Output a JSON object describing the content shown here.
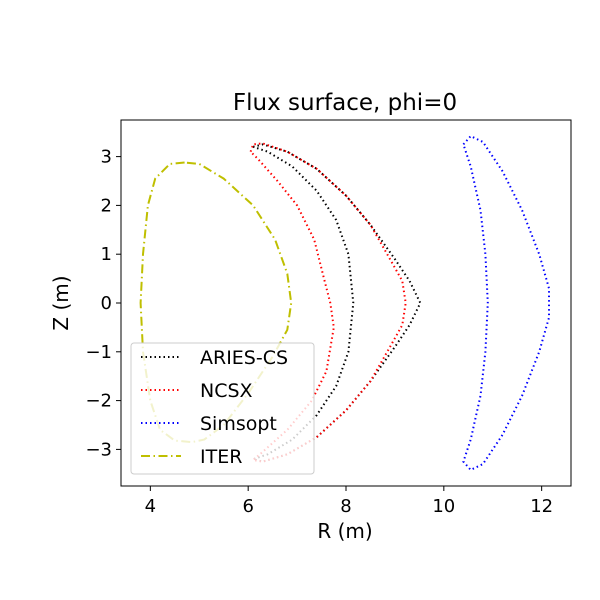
{
  "chart_data": {
    "type": "line",
    "title": "Flux surface, phi=0",
    "xlabel": "R (m)",
    "ylabel": "Z (m)",
    "xlim": [
      3.4,
      12.6
    ],
    "ylim": [
      -3.75,
      3.75
    ],
    "xticks": [
      4,
      6,
      8,
      10,
      12
    ],
    "yticks": [
      -3,
      -2,
      -1,
      0,
      1,
      2,
      3
    ],
    "grid": false,
    "legend_position": "lower-left",
    "series": [
      {
        "name": "ARIES-CS",
        "color": "#000000",
        "style": "dotted",
        "points": [
          [
            6.1,
            3.2
          ],
          [
            6.3,
            3.25
          ],
          [
            6.8,
            3.1
          ],
          [
            7.4,
            2.75
          ],
          [
            8.0,
            2.2
          ],
          [
            8.5,
            1.6
          ],
          [
            9.0,
            0.9
          ],
          [
            9.3,
            0.45
          ],
          [
            9.52,
            0.0
          ],
          [
            9.3,
            -0.45
          ],
          [
            9.0,
            -0.9
          ],
          [
            8.5,
            -1.6
          ],
          [
            8.0,
            -2.2
          ],
          [
            7.4,
            -2.75
          ],
          [
            6.8,
            -3.1
          ],
          [
            6.3,
            -3.25
          ],
          [
            6.1,
            -3.2
          ],
          [
            6.4,
            -3.1
          ],
          [
            6.9,
            -2.8
          ],
          [
            7.4,
            -2.3
          ],
          [
            7.8,
            -1.7
          ],
          [
            8.05,
            -1.0
          ],
          [
            8.15,
            0.0
          ],
          [
            8.05,
            1.0
          ],
          [
            7.8,
            1.7
          ],
          [
            7.4,
            2.3
          ],
          [
            6.9,
            2.8
          ],
          [
            6.4,
            3.1
          ],
          [
            6.1,
            3.2
          ]
        ]
      },
      {
        "name": "NCSX",
        "color": "#ff0000",
        "style": "dotted",
        "points": [
          [
            6.05,
            3.1
          ],
          [
            6.1,
            3.25
          ],
          [
            6.3,
            3.27
          ],
          [
            6.8,
            3.1
          ],
          [
            7.4,
            2.75
          ],
          [
            8.0,
            2.2
          ],
          [
            8.5,
            1.6
          ],
          [
            8.9,
            0.9
          ],
          [
            9.15,
            0.45
          ],
          [
            9.22,
            0.0
          ],
          [
            9.15,
            -0.45
          ],
          [
            8.9,
            -0.9
          ],
          [
            8.5,
            -1.6
          ],
          [
            8.0,
            -2.2
          ],
          [
            7.4,
            -2.75
          ],
          [
            6.8,
            -3.1
          ],
          [
            6.3,
            -3.25
          ],
          [
            6.1,
            -3.22
          ],
          [
            6.3,
            -3.05
          ],
          [
            6.8,
            -2.6
          ],
          [
            7.3,
            -2.0
          ],
          [
            7.6,
            -1.4
          ],
          [
            7.75,
            -0.5
          ],
          [
            7.68,
            0.0
          ],
          [
            7.55,
            0.5
          ],
          [
            7.35,
            1.3
          ],
          [
            7.0,
            2.0
          ],
          [
            6.6,
            2.5
          ],
          [
            6.2,
            2.95
          ],
          [
            6.05,
            3.1
          ]
        ]
      },
      {
        "name": "Simsopt",
        "color": "#0000ff",
        "style": "dotted",
        "points": [
          [
            10.4,
            3.25
          ],
          [
            10.55,
            3.42
          ],
          [
            10.8,
            3.3
          ],
          [
            11.2,
            2.7
          ],
          [
            11.6,
            1.9
          ],
          [
            11.95,
            1.0
          ],
          [
            12.15,
            0.3
          ],
          [
            12.15,
            -0.3
          ],
          [
            11.95,
            -1.0
          ],
          [
            11.6,
            -1.9
          ],
          [
            11.2,
            -2.7
          ],
          [
            10.8,
            -3.3
          ],
          [
            10.55,
            -3.42
          ],
          [
            10.4,
            -3.25
          ],
          [
            10.55,
            -2.8
          ],
          [
            10.75,
            -1.9
          ],
          [
            10.85,
            -1.0
          ],
          [
            10.9,
            0.0
          ],
          [
            10.85,
            1.0
          ],
          [
            10.75,
            1.9
          ],
          [
            10.55,
            2.8
          ],
          [
            10.4,
            3.25
          ]
        ]
      },
      {
        "name": "ITER",
        "color": "#bfbf00",
        "style": "dashdot",
        "points": [
          [
            4.7,
            2.88
          ],
          [
            4.4,
            2.85
          ],
          [
            4.1,
            2.55
          ],
          [
            3.95,
            2.0
          ],
          [
            3.85,
            1.0
          ],
          [
            3.8,
            0.0
          ],
          [
            3.85,
            -1.0
          ],
          [
            4.0,
            -2.0
          ],
          [
            4.2,
            -2.6
          ],
          [
            4.5,
            -2.82
          ],
          [
            4.85,
            -2.85
          ],
          [
            5.1,
            -2.8
          ],
          [
            5.5,
            -2.5
          ],
          [
            6.0,
            -1.85
          ],
          [
            6.5,
            -1.1
          ],
          [
            6.8,
            -0.55
          ],
          [
            6.88,
            0.0
          ],
          [
            6.8,
            0.6
          ],
          [
            6.55,
            1.3
          ],
          [
            6.1,
            2.0
          ],
          [
            5.5,
            2.55
          ],
          [
            5.0,
            2.85
          ],
          [
            4.7,
            2.88
          ]
        ]
      }
    ]
  }
}
